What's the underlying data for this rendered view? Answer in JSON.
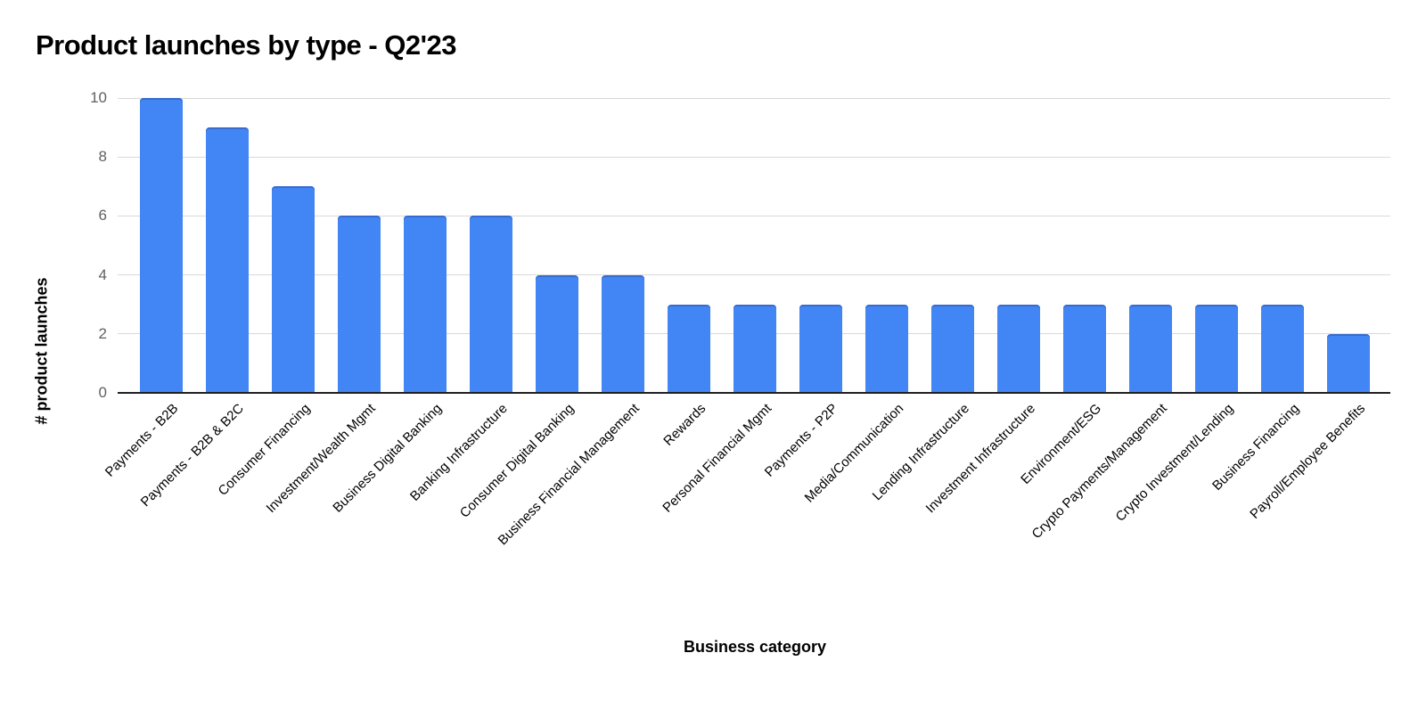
{
  "chart_data": {
    "type": "bar",
    "title": "Product launches by type - Q2'23",
    "xlabel": "Business category",
    "ylabel": "# product launches",
    "categories": [
      "Payments - B2B",
      "Payments - B2B & B2C",
      "Consumer Financing",
      "Investment/Wealth Mgmt",
      "Business Digital Banking",
      "Banking Infrastructure",
      "Consumer Digital Banking",
      "Business Financial Management",
      "Rewards",
      "Personal Financial Mgmt",
      "Payments - P2P",
      "Media/Communication",
      "Lending Infrastructure",
      "Investment Infrastructure",
      "Environment/ESG",
      "Crypto Payments/Management",
      "Crypto Investment/Lending",
      "Business Financing",
      "Payroll/Employee Benefits"
    ],
    "values": [
      10,
      9,
      7,
      6,
      6,
      6,
      4,
      4,
      3,
      3,
      3,
      3,
      3,
      3,
      3,
      3,
      3,
      3,
      2
    ],
    "yticks": [
      0,
      2,
      4,
      6,
      8,
      10
    ],
    "ylim": [
      0,
      10
    ],
    "grid": true,
    "legend": "none",
    "x_label_rotation_deg": 45,
    "colors": {
      "bar": "#4285f4",
      "bar_top_edge": "#21408c",
      "grid": "#d9d9d9",
      "baseline": "#1f1f1f",
      "tick_label": "#616161",
      "category_label": "#000000",
      "title": "#000000",
      "background": "#ffffff"
    }
  }
}
